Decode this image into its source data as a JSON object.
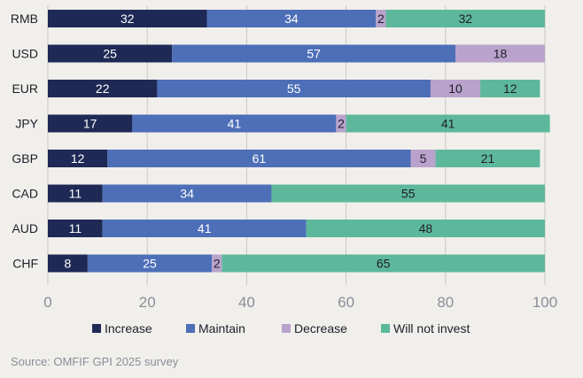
{
  "chart_data": {
    "type": "bar",
    "orientation": "horizontal",
    "stacked": true,
    "categories": [
      "RMB",
      "USD",
      "EUR",
      "JPY",
      "GBP",
      "CAD",
      "AUD",
      "CHF"
    ],
    "series": [
      {
        "name": "Increase",
        "color": "#1e2a55",
        "label_color": "#ffffff",
        "values": [
          32,
          25,
          22,
          17,
          12,
          11,
          11,
          8
        ]
      },
      {
        "name": "Maintain",
        "color": "#4d6fb8",
        "label_color": "#ffffff",
        "values": [
          34,
          57,
          55,
          41,
          61,
          34,
          41,
          25
        ]
      },
      {
        "name": "Decrease",
        "color": "#b9a3cc",
        "label_color": "#1e1e2a",
        "values": [
          2,
          18,
          10,
          2,
          5,
          0,
          0,
          2
        ]
      },
      {
        "name": "Will not invest",
        "color": "#5db89b",
        "label_color": "#1e1e2a",
        "values": [
          32,
          0,
          12,
          41,
          21,
          55,
          48,
          65
        ]
      }
    ],
    "xlim": [
      0,
      100
    ],
    "xticks": [
      0,
      20,
      40,
      60,
      80,
      100
    ],
    "title": "",
    "xlabel": "",
    "ylabel": "",
    "legend_position": "bottom"
  },
  "source": "Source: OMFIF GPI 2025 survey"
}
